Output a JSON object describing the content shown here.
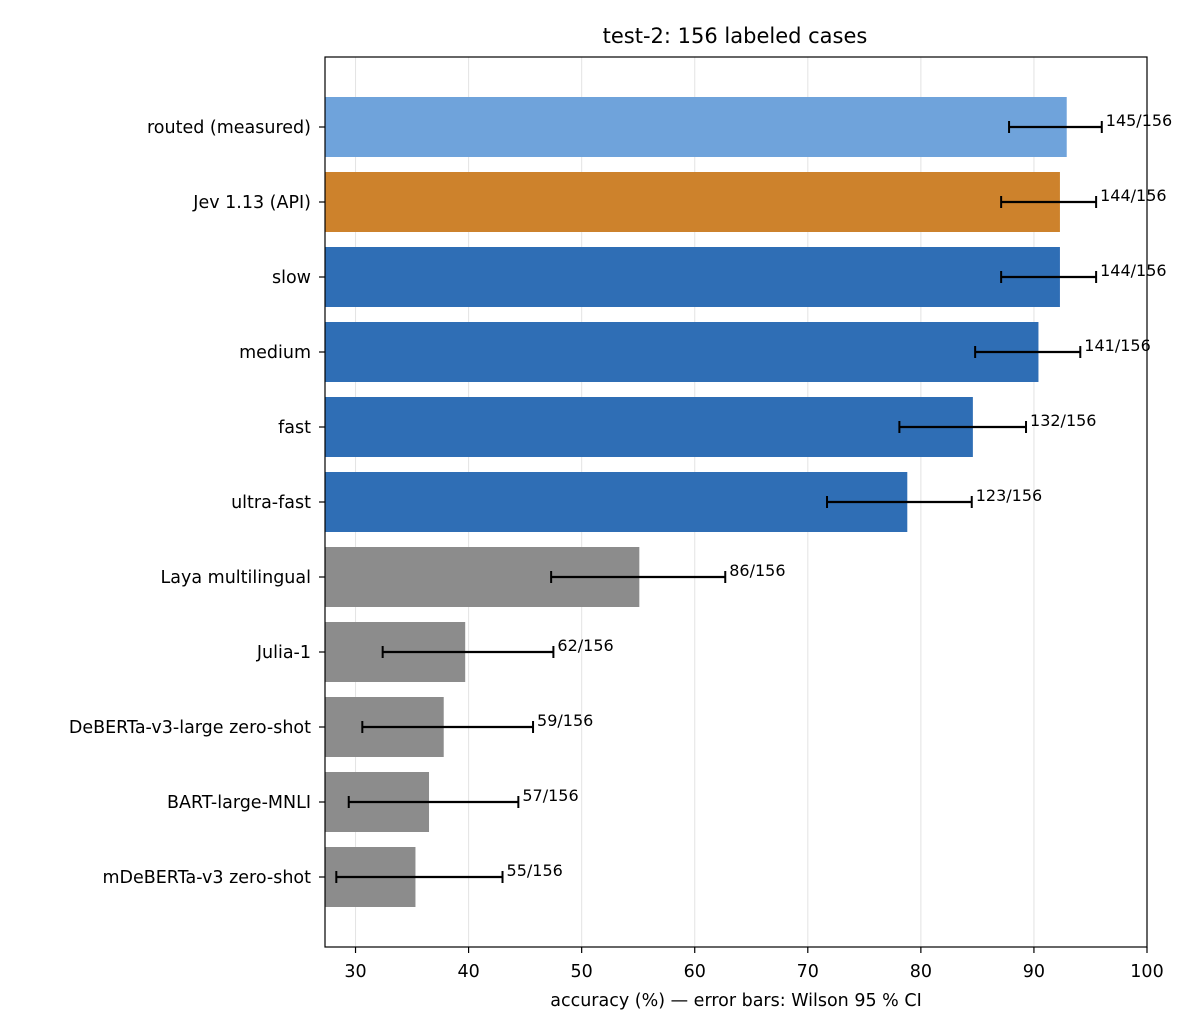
{
  "chart_data": {
    "type": "bar",
    "orientation": "horizontal",
    "title": "test-2: 156 labeled cases",
    "xlabel": "accuracy (%) — error bars: Wilson 95 % CI",
    "ylabel": "",
    "xlim": [
      27.3,
      100
    ],
    "xticks": [
      30,
      40,
      50,
      60,
      70,
      80,
      90,
      100
    ],
    "grid": "vertical",
    "categories": [
      "routed (measured)",
      "Jev 1.13 (API)",
      "slow",
      "medium",
      "fast",
      "ultra-fast",
      "Laya multilingual",
      "Julia-1",
      "DeBERTa-v3-large zero-shot",
      "BART-large-MNLI",
      "mDeBERTa-v3 zero-shot"
    ],
    "values": [
      92.9,
      92.3,
      92.3,
      90.4,
      84.6,
      78.8,
      55.1,
      39.7,
      37.8,
      36.5,
      35.3
    ],
    "ci_low": [
      87.8,
      87.1,
      87.1,
      84.8,
      78.1,
      71.7,
      47.3,
      32.4,
      30.6,
      29.4,
      28.3
    ],
    "ci_high": [
      96.0,
      95.5,
      95.5,
      94.1,
      89.3,
      84.5,
      62.7,
      47.5,
      45.7,
      44.4,
      43.0
    ],
    "data_labels": [
      "145/156",
      "144/156",
      "144/156",
      "141/156",
      "132/156",
      "123/156",
      "86/156",
      "62/156",
      "59/156",
      "57/156",
      "55/156"
    ],
    "colors": [
      "#6fa3db",
      "#cd822c",
      "#2f6eb5",
      "#2f6eb5",
      "#2f6eb5",
      "#2f6eb5",
      "#8c8c8c",
      "#8c8c8c",
      "#8c8c8c",
      "#8c8c8c",
      "#8c8c8c"
    ]
  }
}
